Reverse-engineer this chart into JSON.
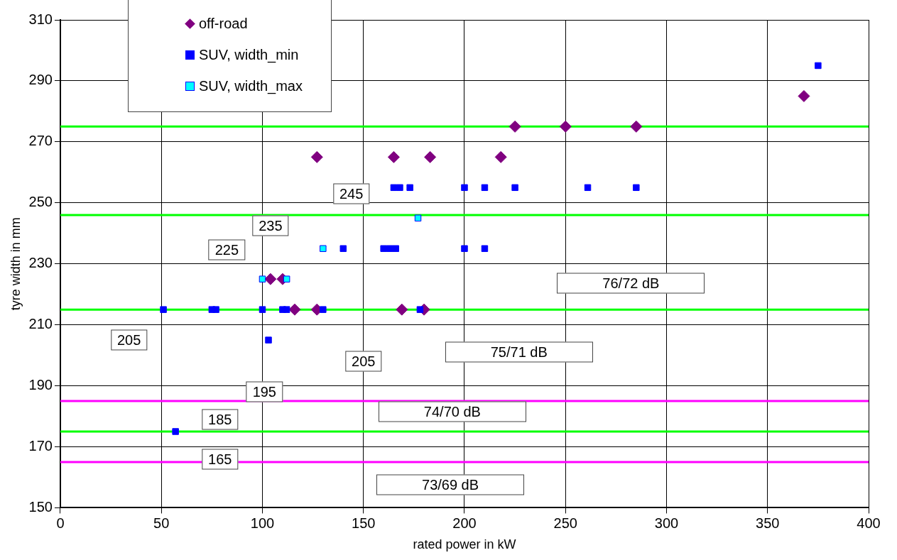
{
  "chart_data": {
    "type": "scatter",
    "xlabel": "rated power in kW",
    "ylabel": "tyre width in mm",
    "xlim": [
      0,
      400
    ],
    "xticks": [
      0,
      50,
      100,
      150,
      200,
      250,
      300,
      350,
      400
    ],
    "ylim": [
      150,
      310
    ],
    "yticks": [
      150,
      170,
      190,
      210,
      230,
      250,
      270,
      290,
      310
    ],
    "grid": true,
    "legend": "top left",
    "series": [
      {
        "name": "off-road",
        "color": "#800080",
        "marker": "diamond",
        "x": [
          127,
          165,
          183,
          218,
          225,
          250,
          285,
          368,
          104,
          110,
          116,
          127,
          169,
          180
        ],
        "values": [
          265,
          265,
          265,
          265,
          275,
          275,
          275,
          285,
          225,
          225,
          215,
          215,
          215,
          215
        ]
      },
      {
        "name": "SUV, width_min",
        "color": "#0000ff",
        "marker": "square",
        "x": [
          51,
          75,
          77,
          100,
          110,
          112,
          130,
          178,
          103,
          57,
          140,
          160,
          163,
          166,
          200,
          210,
          165,
          168,
          173,
          200,
          210,
          225,
          261,
          285,
          375
        ],
        "values": [
          215,
          215,
          215,
          215,
          215,
          215,
          215,
          215,
          205,
          175,
          235,
          235,
          235,
          235,
          235,
          235,
          255,
          255,
          255,
          255,
          255,
          255,
          255,
          255,
          295
        ]
      },
      {
        "name": "SUV, width_max",
        "color": "#00ffff",
        "marker": "square",
        "x": [
          100,
          112,
          130,
          177
        ],
        "values": [
          225,
          225,
          235,
          245
        ]
      }
    ],
    "ref_lines": [
      {
        "axis": "y",
        "value": 275,
        "color": "#00ff00"
      },
      {
        "axis": "y",
        "value": 246,
        "color": "#00ff00"
      },
      {
        "axis": "y",
        "value": 215,
        "color": "#00ff00"
      },
      {
        "axis": "y",
        "value": 175,
        "color": "#00ff00"
      },
      {
        "axis": "y",
        "value": 185,
        "color": "#ff00ff"
      },
      {
        "axis": "y",
        "value": 165,
        "color": "#ff00ff"
      }
    ],
    "annotations": [
      "245",
      "235",
      "225",
      "205",
      "205",
      "195",
      "185",
      "165",
      "76/72 dB",
      "75/71 dB",
      "74/70 dB",
      "73/69 dB"
    ]
  }
}
